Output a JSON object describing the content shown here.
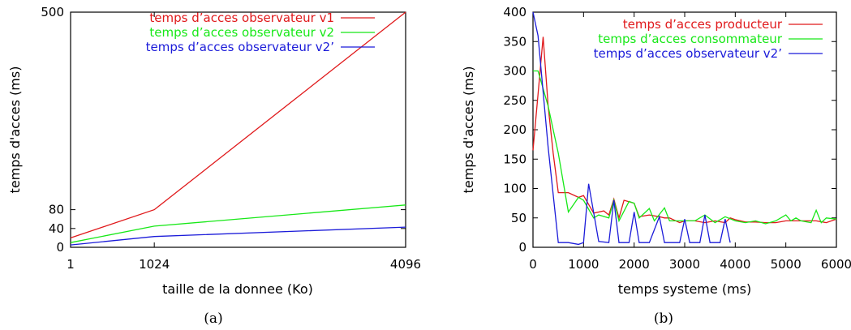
{
  "chart_data": [
    {
      "type": "line",
      "panel_caption": "(a)",
      "xlabel": "taille de la donnee (Ko)",
      "ylabel": "temps d'acces (ms)",
      "xlim": [
        1,
        4096
      ],
      "ylim": [
        0,
        500
      ],
      "xticks": [
        1,
        1024,
        4096
      ],
      "yticks": [
        0,
        40,
        80,
        500
      ],
      "grid": false,
      "legend_position": "top-right",
      "x": [
        1,
        1024,
        4096
      ],
      "series": [
        {
          "name": "temps d’acces observateur v1",
          "color": "#e0191b",
          "values": [
            20,
            80,
            500
          ]
        },
        {
          "name": "temps d’acces observateur v2",
          "color": "#17e817",
          "values": [
            10,
            45,
            90
          ]
        },
        {
          "name": "temps d’acces observateur v2’",
          "color": "#1b1bd9",
          "values": [
            5,
            23,
            43
          ]
        }
      ]
    },
    {
      "type": "line",
      "panel_caption": "(b)",
      "xlabel": "temps systeme (ms)",
      "ylabel": "temps d'acces (ms)",
      "xlim": [
        0,
        6000
      ],
      "ylim": [
        0,
        400
      ],
      "xticks": [
        0,
        1000,
        2000,
        3000,
        4000,
        5000,
        6000
      ],
      "yticks": [
        0,
        50,
        100,
        150,
        200,
        250,
        300,
        350,
        400
      ],
      "grid": false,
      "legend_position": "top-right",
      "series": [
        {
          "name": "temps d’acces producteur",
          "color": "#e0191b",
          "x": [
            0,
            100,
            200,
            300,
            400,
            500,
            700,
            900,
            1000,
            1200,
            1400,
            1500,
            1600,
            1700,
            1800,
            2000,
            2100,
            2300,
            2500,
            2600,
            2700,
            2900,
            3000,
            3200,
            3400,
            3600,
            3800,
            3900,
            4000,
            4200,
            4400,
            4600,
            4800,
            5000,
            5200,
            5400,
            5600,
            5800,
            6000
          ],
          "values": [
            165,
            260,
            358,
            240,
            160,
            93,
            93,
            85,
            88,
            58,
            62,
            55,
            82,
            50,
            80,
            75,
            52,
            55,
            52,
            50,
            50,
            42,
            45,
            45,
            42,
            45,
            42,
            50,
            47,
            43,
            43,
            42,
            42,
            45,
            45,
            45,
            45,
            42,
            48
          ]
        },
        {
          "name": "temps d’acces consommateur",
          "color": "#17e817",
          "x": [
            0,
            100,
            200,
            300,
            400,
            500,
            700,
            900,
            1000,
            1200,
            1300,
            1500,
            1600,
            1700,
            1900,
            2000,
            2100,
            2300,
            2400,
            2600,
            2700,
            2900,
            3000,
            3200,
            3400,
            3600,
            3800,
            4000,
            4200,
            4400,
            4600,
            4800,
            5000,
            5100,
            5200,
            5300,
            5500,
            5600,
            5700,
            5800,
            6000
          ],
          "values": [
            300,
            300,
            270,
            240,
            200,
            160,
            60,
            85,
            80,
            50,
            55,
            50,
            80,
            45,
            78,
            75,
            50,
            66,
            45,
            67,
            45,
            45,
            45,
            45,
            55,
            42,
            52,
            45,
            42,
            45,
            40,
            45,
            55,
            45,
            50,
            45,
            42,
            63,
            42,
            50,
            48
          ]
        },
        {
          "name": "temps d’acces observateur v2’",
          "color": "#1b1bd9",
          "x": [
            0,
            100,
            300,
            500,
            700,
            900,
            1000,
            1100,
            1300,
            1500,
            1600,
            1700,
            1900,
            2000,
            2100,
            2300,
            2500,
            2600,
            2700,
            2900,
            3000,
            3100,
            3300,
            3400,
            3500,
            3700,
            3800,
            3900
          ],
          "values": [
            400,
            360,
            170,
            8,
            8,
            5,
            8,
            108,
            10,
            8,
            80,
            8,
            8,
            60,
            8,
            8,
            52,
            8,
            8,
            8,
            48,
            8,
            8,
            55,
            8,
            8,
            48,
            8
          ]
        }
      ]
    }
  ]
}
